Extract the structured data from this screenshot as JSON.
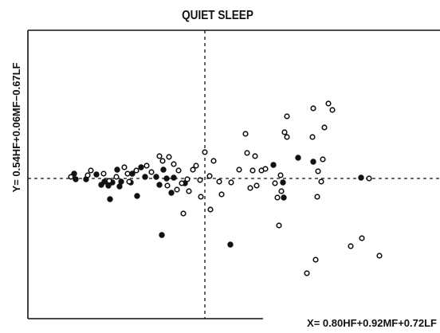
{
  "chart_data": {
    "type": "scatter",
    "title": "QUIET SLEEP",
    "x_label": "X= 0.80HF+0.92MF+0.72LF",
    "y_label": "Y= 0.54HF+0.06MF−0.67LF",
    "xlim": [
      -2.22,
      2.95
    ],
    "ylim": [
      -1.76,
      1.86
    ],
    "reference_lines": {
      "x": 0,
      "y": 0
    },
    "series": [
      {
        "color": "#111111",
        "marker": "filled",
        "x": [
          -1.64,
          -1.62,
          -1.49,
          -1.36,
          -1.3,
          -1.26,
          -1.21,
          -1.19,
          -1.16,
          -1.1,
          -1.07,
          -1.05,
          -0.93,
          -0.91,
          -0.85,
          -0.8,
          -0.75,
          -0.61,
          -0.57,
          -0.54,
          -0.52,
          -0.48,
          -0.42,
          -0.39,
          -0.25,
          0.32,
          0.86,
          0.99,
          0.98,
          1.17,
          1.36,
          1.96
        ],
        "values": [
          0.06,
          -0.01,
          -0.01,
          0.05,
          -0.08,
          -0.04,
          -0.09,
          -0.26,
          -0.05,
          0.11,
          -0.1,
          -0.04,
          -0.05,
          0.06,
          -0.22,
          0.14,
          0.02,
          0.02,
          -0.08,
          -0.71,
          0.11,
          0,
          -0.18,
          0.01,
          -0.06,
          -0.83,
          0.17,
          -0.24,
          -0.05,
          0.26,
          0.21,
          0.01
        ]
      },
      {
        "color": "#111111",
        "marker": "open",
        "x": [
          -1.68,
          -1.47,
          -1.43,
          -1.27,
          -1.2,
          -1.11,
          -1.01,
          -0.97,
          -0.95,
          -0.86,
          -0.73,
          -0.67,
          -0.57,
          -0.53,
          -0.45,
          -0.47,
          -0.39,
          -0.35,
          -0.33,
          -0.29,
          -0.27,
          -0.22,
          -0.2,
          -0.15,
          -0.11,
          -0.06,
          -0.05,
          0,
          0.06,
          0.07,
          0.11,
          0.18,
          0.21,
          0.33,
          0.43,
          0.51,
          0.53,
          0.57,
          0.63,
          0.6,
          0.65,
          0.71,
          0.76,
          0.88,
          0.91,
          0.93,
          0.95,
          1.0,
          1.03,
          1.03,
          1.28,
          1.36,
          1.39,
          1.41,
          1.42,
          1.46,
          1.35,
          1.5,
          1.55,
          1.6,
          1.83,
          1.97,
          2.06,
          2.19,
          0.96,
          1.48
        ],
        "values": [
          0.02,
          0.04,
          0.1,
          0.06,
          -0.03,
          0.02,
          0.14,
          0.06,
          -0.04,
          0.1,
          0.16,
          0.08,
          0.28,
          0.22,
          0.27,
          -0.09,
          0.18,
          -0.14,
          0.1,
          -0.06,
          -0.44,
          -0.01,
          -0.16,
          0.11,
          0.16,
          -0.02,
          -0.23,
          0.33,
          0.03,
          -0.39,
          0.22,
          -0.04,
          -0.2,
          -0.05,
          0.11,
          0.56,
          0.32,
          -0.12,
          0.28,
          0.1,
          -0.09,
          0.1,
          0.12,
          -0.06,
          -0.24,
          -0.59,
          0.04,
          0.58,
          0.78,
          0.52,
          -1.19,
          0.88,
          -1.02,
          -0.23,
          0.09,
          -0.04,
          0.52,
          0.64,
          0.94,
          0.86,
          -0.85,
          -0.75,
          0,
          -0.97,
          -0.16,
          0.24
        ]
      }
    ]
  }
}
